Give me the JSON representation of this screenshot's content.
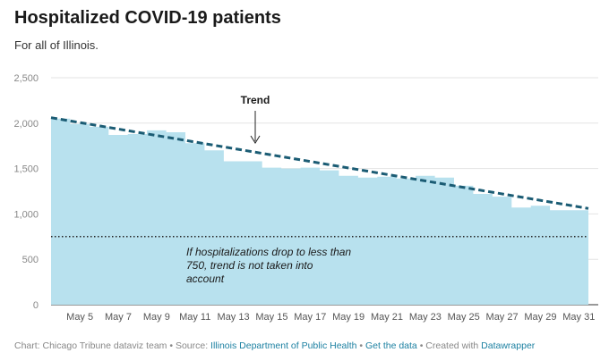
{
  "title": "Hospitalized COVID-19 patients",
  "subtitle": "For all of Illinois.",
  "footer": {
    "chart_by": "Chart: Chicago Tribune dataviz team",
    "sep1": " • ",
    "source_label": "Source: ",
    "source_link": "Illinois Department of Public Health",
    "sep2": " • ",
    "get_data": "Get the data",
    "sep3": " • ",
    "created_with": "Created with ",
    "datawrapper": "Datawrapper"
  },
  "colors": {
    "area": "#b8e1ee",
    "trend": "#1b5c74",
    "threshold": "#222222",
    "grid": "#e3e3e3"
  },
  "chart_data": {
    "type": "area",
    "title": "Hospitalized COVID-19 patients",
    "subtitle": "For all of Illinois.",
    "xlabel": "",
    "ylabel": "",
    "ylim": [
      0,
      2500
    ],
    "yticks": [
      0,
      500,
      1000,
      1500,
      2000,
      2500
    ],
    "ytick_labels": [
      "0",
      "500",
      "1,000",
      "1,500",
      "2,000",
      "2,500"
    ],
    "grid": true,
    "x": [
      "May 4",
      "May 5",
      "May 6",
      "May 7",
      "May 8",
      "May 9",
      "May 10",
      "May 11",
      "May 12",
      "May 13",
      "May 14",
      "May 15",
      "May 16",
      "May 17",
      "May 18",
      "May 19",
      "May 20",
      "May 21",
      "May 22",
      "May 23",
      "May 24",
      "May 25",
      "May 26",
      "May 27",
      "May 28",
      "May 29",
      "May 30",
      "May 31"
    ],
    "xtick_labels": [
      "May 5",
      "May 7",
      "May 9",
      "May 11",
      "May 13",
      "May 15",
      "May 17",
      "May 19",
      "May 21",
      "May 23",
      "May 25",
      "May 27",
      "May 29",
      "May 31"
    ],
    "series": [
      {
        "values": [
          2050,
          1990,
          1960,
          1870,
          1880,
          1920,
          1900,
          1780,
          1700,
          1580,
          1580,
          1510,
          1500,
          1510,
          1480,
          1420,
          1400,
          1410,
          1390,
          1420,
          1400,
          1310,
          1220,
          1190,
          1070,
          1090,
          1040,
          1040
        ]
      }
    ],
    "trend": {
      "label": "Trend",
      "start": [
        "May 4",
        2060
      ],
      "end": [
        "May 31",
        1060
      ]
    },
    "threshold": {
      "value": 750,
      "annotation": [
        "If hospitalizations drop to less than",
        "750, trend is not taken into",
        "account"
      ]
    }
  }
}
